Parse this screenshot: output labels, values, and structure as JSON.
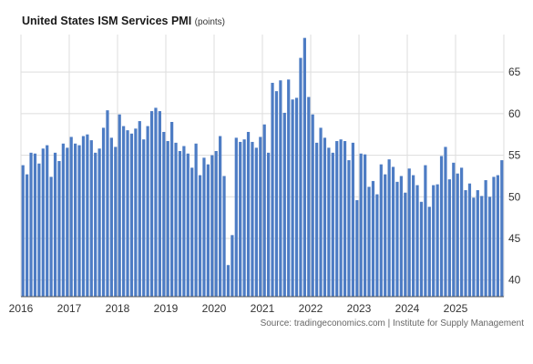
{
  "title": "United States ISM Services PMI",
  "unit": "(points)",
  "source": "Source: tradingeconomics.com | Institute for Supply Management",
  "colors": {
    "bar": "#4d7cc4",
    "grid": "#dddddd",
    "axis": "#555555"
  },
  "chart_data": {
    "type": "bar",
    "title": "United States ISM Services PMI",
    "ylabel": "points",
    "ylim": [
      38,
      69.5
    ],
    "y_ticks": [
      40,
      45,
      50,
      55,
      60,
      65
    ],
    "y_tick_labels": [
      "40",
      "45",
      "50",
      "55",
      "60",
      "65"
    ],
    "x_tick_labels": [
      "2016",
      "2017",
      "2018",
      "2019",
      "2020",
      "2021",
      "2022",
      "2023",
      "2024",
      "2025"
    ],
    "grid": true,
    "start": "2016-01",
    "end": "2025-11",
    "frequency": "monthly",
    "values": [
      53.8,
      52.7,
      55.3,
      55.2,
      54.0,
      55.8,
      56.2,
      52.4,
      55.3,
      54.3,
      56.4,
      55.9,
      57.2,
      56.4,
      56.2,
      57.3,
      57.5,
      56.8,
      55.3,
      55.8,
      58.3,
      60.4,
      57.1,
      56.0,
      59.9,
      58.5,
      58.0,
      57.6,
      58.2,
      59.1,
      56.9,
      58.5,
      60.3,
      60.7,
      60.3,
      57.8,
      56.7,
      59.0,
      56.5,
      55.5,
      56.1,
      55.2,
      53.5,
      56.4,
      52.6,
      54.7,
      53.9,
      55.0,
      55.5,
      57.3,
      52.5,
      41.8,
      45.4,
      57.1,
      56.6,
      56.9,
      57.8,
      56.6,
      55.9,
      57.2,
      58.7,
      55.3,
      63.7,
      62.7,
      64.0,
      60.1,
      64.1,
      61.7,
      61.9,
      66.7,
      69.1,
      62.0,
      59.9,
      56.5,
      58.3,
      57.1,
      55.9,
      55.3,
      56.7,
      56.9,
      56.7,
      54.4,
      56.5,
      49.6,
      55.2,
      55.1,
      51.2,
      51.9,
      50.3,
      53.9,
      52.7,
      54.5,
      53.6,
      51.8,
      52.5,
      50.5,
      53.4,
      52.6,
      51.4,
      49.4,
      53.8,
      48.8,
      51.4,
      51.5,
      54.9,
      56.0,
      52.1,
      54.1,
      52.8,
      53.5,
      50.8,
      51.6,
      49.9,
      50.8,
      50.1,
      52.0,
      50.0,
      52.4,
      52.6,
      54.4
    ]
  }
}
